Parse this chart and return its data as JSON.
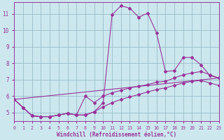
{
  "xlabel": "Windchill (Refroidissement éolien,°C)",
  "bg_color": "#cce8ee",
  "grid_color": "#99bbcc",
  "line_color": "#993399",
  "xlim": [
    0,
    23
  ],
  "ylim": [
    4.5,
    11.7
  ],
  "yticks": [
    5,
    6,
    7,
    8,
    9,
    10,
    11
  ],
  "xticks": [
    0,
    1,
    2,
    3,
    4,
    5,
    6,
    7,
    8,
    9,
    10,
    11,
    12,
    13,
    14,
    15,
    16,
    17,
    18,
    19,
    20,
    21,
    22,
    23
  ],
  "series1_x": [
    0,
    1,
    2,
    3,
    4,
    5,
    6,
    7,
    8,
    9,
    10,
    11,
    12,
    13,
    14,
    15,
    16,
    17,
    18,
    19,
    20,
    21,
    22,
    23
  ],
  "series1_y": [
    5.8,
    5.3,
    4.8,
    4.75,
    4.75,
    4.85,
    4.95,
    4.85,
    4.85,
    5.05,
    5.6,
    10.95,
    11.5,
    11.35,
    10.8,
    11.05,
    9.85,
    7.5,
    7.55,
    8.35,
    8.35,
    7.9,
    7.25,
    7.1
  ],
  "series2_x": [
    0,
    1,
    2,
    3,
    4,
    5,
    6,
    7,
    8,
    9,
    10,
    11,
    12,
    13,
    14,
    15,
    16,
    17,
    18,
    19,
    20,
    21,
    22,
    23
  ],
  "series2_y": [
    5.8,
    5.3,
    4.8,
    4.75,
    4.75,
    4.85,
    4.95,
    4.85,
    6.0,
    5.6,
    6.0,
    6.2,
    6.35,
    6.5,
    6.6,
    6.7,
    6.85,
    6.9,
    7.1,
    7.3,
    7.4,
    7.5,
    7.3,
    7.1
  ],
  "series3_x": [
    0,
    1,
    2,
    3,
    4,
    5,
    6,
    7,
    8,
    9,
    10,
    11,
    12,
    13,
    14,
    15,
    16,
    17,
    18,
    19,
    20,
    21,
    22,
    23
  ],
  "series3_y": [
    5.8,
    5.3,
    4.8,
    4.75,
    4.75,
    4.85,
    4.95,
    4.85,
    4.85,
    5.05,
    5.35,
    5.6,
    5.8,
    5.95,
    6.1,
    6.25,
    6.4,
    6.5,
    6.65,
    6.8,
    6.9,
    6.95,
    6.8,
    6.65
  ],
  "series4_x": [
    0,
    23
  ],
  "series4_y": [
    5.8,
    7.1
  ]
}
